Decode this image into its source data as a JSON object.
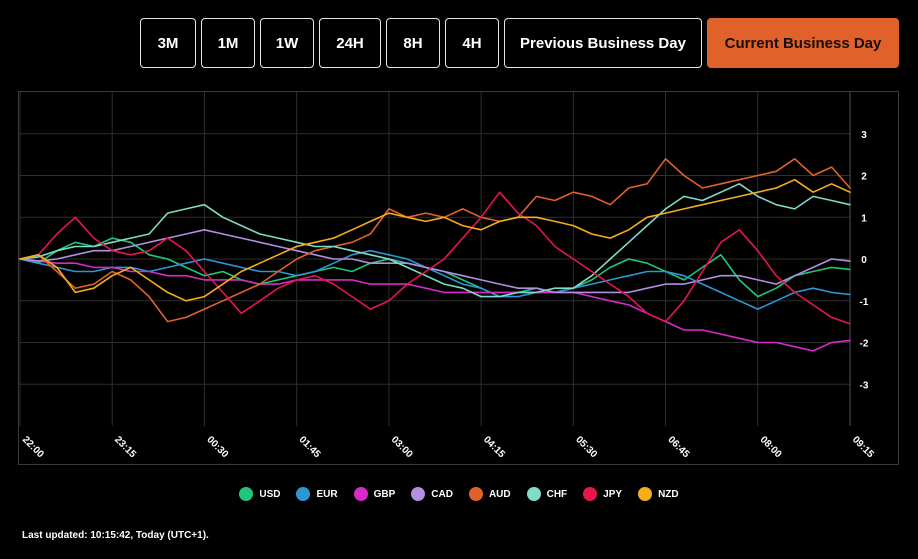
{
  "ranges": [
    {
      "label": "3M",
      "active": false
    },
    {
      "label": "1M",
      "active": false
    },
    {
      "label": "1W",
      "active": false
    },
    {
      "label": "24H",
      "active": false
    },
    {
      "label": "8H",
      "active": false
    },
    {
      "label": "4H",
      "active": false
    },
    {
      "label": "Previous Business Day",
      "active": false
    },
    {
      "label": "Current Business Day",
      "active": true
    }
  ],
  "chart_data": {
    "type": "line",
    "x": [
      "22:00",
      "22:15",
      "22:30",
      "22:45",
      "23:00",
      "23:15",
      "23:30",
      "23:45",
      "00:00",
      "00:15",
      "00:30",
      "00:45",
      "01:00",
      "01:15",
      "01:30",
      "01:45",
      "02:00",
      "02:15",
      "02:30",
      "02:45",
      "03:00",
      "03:15",
      "03:30",
      "03:45",
      "04:00",
      "04:15",
      "04:30",
      "04:45",
      "05:00",
      "05:15",
      "05:30",
      "05:45",
      "06:00",
      "06:15",
      "06:30",
      "06:45",
      "07:00",
      "07:15",
      "07:30",
      "07:45",
      "08:00",
      "08:15",
      "08:30",
      "08:45",
      "09:00",
      "09:15"
    ],
    "x_ticks": [
      "22:00",
      "23:15",
      "00:30",
      "01:45",
      "03:00",
      "04:15",
      "05:30",
      "06:45",
      "08:00",
      "09:15"
    ],
    "y_ticks": [
      3,
      2,
      1,
      0,
      -1,
      -2,
      -3
    ],
    "ylim": [
      -4,
      4
    ],
    "grid": true,
    "legend_position": "bottom",
    "series": [
      {
        "name": "USD",
        "color": "#1fc77a",
        "values": [
          0,
          -0.1,
          0.2,
          0.4,
          0.3,
          0.5,
          0.4,
          0.1,
          0.0,
          -0.2,
          -0.4,
          -0.3,
          -0.5,
          -0.6,
          -0.5,
          -0.4,
          -0.3,
          -0.2,
          -0.3,
          -0.1,
          0.0,
          -0.1,
          -0.2,
          -0.3,
          -0.5,
          -0.7,
          -0.9,
          -0.8,
          -0.7,
          -0.8,
          -0.7,
          -0.5,
          -0.2,
          0.0,
          -0.1,
          -0.3,
          -0.5,
          -0.2,
          0.1,
          -0.5,
          -0.9,
          -0.7,
          -0.4,
          -0.3,
          -0.2,
          -0.25
        ]
      },
      {
        "name": "EUR",
        "color": "#2b97d4",
        "values": [
          0,
          -0.1,
          -0.2,
          -0.3,
          -0.3,
          -0.2,
          -0.2,
          -0.3,
          -0.2,
          -0.1,
          0.0,
          -0.1,
          -0.2,
          -0.3,
          -0.3,
          -0.4,
          -0.3,
          -0.1,
          0.1,
          0.2,
          0.1,
          0.0,
          -0.2,
          -0.4,
          -0.6,
          -0.7,
          -0.9,
          -0.9,
          -0.8,
          -0.8,
          -0.7,
          -0.6,
          -0.5,
          -0.4,
          -0.3,
          -0.3,
          -0.4,
          -0.6,
          -0.8,
          -1.0,
          -1.2,
          -1.0,
          -0.8,
          -0.7,
          -0.8,
          -0.85
        ]
      },
      {
        "name": "GBP",
        "color": "#d62bc8",
        "values": [
          0,
          -0.05,
          -0.1,
          -0.1,
          -0.2,
          -0.2,
          -0.3,
          -0.3,
          -0.4,
          -0.4,
          -0.5,
          -0.5,
          -0.5,
          -0.6,
          -0.6,
          -0.5,
          -0.5,
          -0.5,
          -0.5,
          -0.6,
          -0.6,
          -0.6,
          -0.7,
          -0.8,
          -0.8,
          -0.8,
          -0.8,
          -0.8,
          -0.8,
          -0.8,
          -0.8,
          -0.9,
          -1.0,
          -1.1,
          -1.3,
          -1.5,
          -1.7,
          -1.7,
          -1.8,
          -1.9,
          -2.0,
          -2.0,
          -2.1,
          -2.2,
          -2.0,
          -1.95
        ]
      },
      {
        "name": "CAD",
        "color": "#b48ee0",
        "values": [
          0,
          -0.05,
          0.0,
          0.1,
          0.2,
          0.2,
          0.3,
          0.4,
          0.5,
          0.6,
          0.7,
          0.6,
          0.5,
          0.4,
          0.3,
          0.2,
          0.1,
          0.0,
          0.0,
          -0.1,
          -0.1,
          -0.1,
          -0.2,
          -0.3,
          -0.4,
          -0.5,
          -0.6,
          -0.7,
          -0.7,
          -0.8,
          -0.8,
          -0.8,
          -0.8,
          -0.8,
          -0.7,
          -0.6,
          -0.6,
          -0.5,
          -0.4,
          -0.4,
          -0.5,
          -0.6,
          -0.4,
          -0.2,
          0.0,
          -0.05
        ]
      },
      {
        "name": "AUD",
        "color": "#e0622a",
        "values": [
          0,
          0.1,
          -0.3,
          -0.7,
          -0.6,
          -0.3,
          -0.5,
          -0.9,
          -1.5,
          -1.4,
          -1.2,
          -1.0,
          -0.8,
          -0.6,
          -0.3,
          0.0,
          0.2,
          0.3,
          0.4,
          0.6,
          1.2,
          1.0,
          1.1,
          1.0,
          1.2,
          1.0,
          0.9,
          1.0,
          1.5,
          1.4,
          1.6,
          1.5,
          1.3,
          1.7,
          1.8,
          2.4,
          2.0,
          1.7,
          1.8,
          1.9,
          2.0,
          2.1,
          2.4,
          2.0,
          2.2,
          1.7
        ]
      },
      {
        "name": "CHF",
        "color": "#7fdcc8",
        "values": [
          0,
          0.05,
          0.2,
          0.3,
          0.3,
          0.4,
          0.5,
          0.6,
          1.1,
          1.2,
          1.3,
          1.0,
          0.8,
          0.6,
          0.5,
          0.4,
          0.3,
          0.3,
          0.2,
          0.1,
          0.0,
          -0.2,
          -0.4,
          -0.6,
          -0.7,
          -0.9,
          -0.9,
          -0.8,
          -0.8,
          -0.7,
          -0.7,
          -0.4,
          0.0,
          0.4,
          0.8,
          1.2,
          1.5,
          1.4,
          1.6,
          1.8,
          1.5,
          1.3,
          1.2,
          1.5,
          1.4,
          1.3
        ]
      },
      {
        "name": "JPY",
        "color": "#e8154e",
        "values": [
          0,
          0.1,
          0.6,
          1.0,
          0.5,
          0.2,
          0.1,
          0.2,
          0.5,
          0.2,
          -0.3,
          -0.8,
          -1.3,
          -1.0,
          -0.7,
          -0.5,
          -0.4,
          -0.6,
          -0.9,
          -1.2,
          -1.0,
          -0.6,
          -0.3,
          0.0,
          0.5,
          1.0,
          1.6,
          1.1,
          0.8,
          0.3,
          0.0,
          -0.3,
          -0.6,
          -0.9,
          -1.3,
          -1.5,
          -1.0,
          -0.3,
          0.4,
          0.7,
          0.2,
          -0.4,
          -0.8,
          -1.1,
          -1.4,
          -1.55
        ]
      },
      {
        "name": "NZD",
        "color": "#f5ae1b",
        "values": [
          0,
          0.1,
          -0.2,
          -0.8,
          -0.7,
          -0.4,
          -0.2,
          -0.5,
          -0.8,
          -1.0,
          -0.9,
          -0.6,
          -0.3,
          -0.1,
          0.1,
          0.3,
          0.4,
          0.5,
          0.7,
          0.9,
          1.1,
          1.0,
          0.9,
          1.0,
          0.8,
          0.7,
          0.9,
          1.0,
          1.0,
          0.9,
          0.8,
          0.6,
          0.5,
          0.7,
          1.0,
          1.1,
          1.2,
          1.3,
          1.4,
          1.5,
          1.6,
          1.7,
          1.9,
          1.6,
          1.8,
          1.6
        ]
      }
    ]
  },
  "footer": {
    "last_updated": "Last updated: 10:15:42, Today (UTC+1)."
  }
}
